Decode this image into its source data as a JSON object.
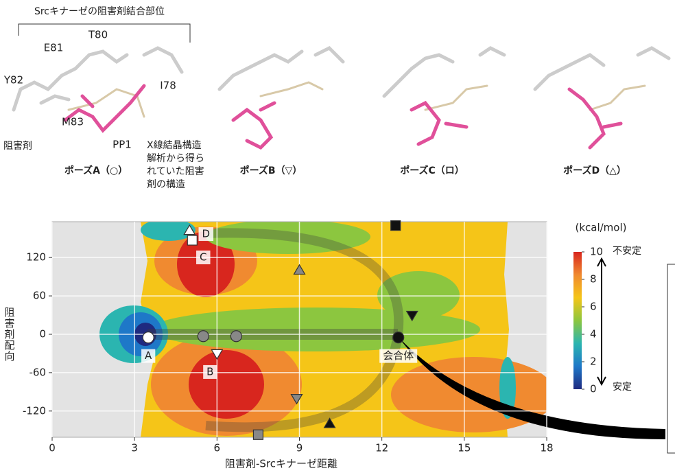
{
  "figure": {
    "site_title": "Srcキナーゼの阻害剤結合部位",
    "residues": [
      "T80",
      "E81",
      "Y82",
      "I78",
      "M83",
      "PP1",
      "阻害剤"
    ],
    "xray_note": [
      "X線結晶構造",
      "解析から得ら",
      "れていた阻害",
      "剤の構造"
    ],
    "poses": [
      "ポーズA（○）",
      "ポーズB（▽）",
      "ポーズC（ロ）",
      "ポーズD（△）"
    ]
  },
  "chart_data": {
    "type": "energy-map",
    "xlabel": "阻害剤-Srcキナーゼ距離",
    "ylabel": "阻害剤配向",
    "xlim": [
      0,
      18
    ],
    "xticks": [
      0,
      3,
      6,
      9,
      12,
      15,
      18
    ],
    "ylim": [
      -161,
      176
    ],
    "yticks": [
      120,
      60,
      0,
      -60,
      -120
    ],
    "grid": true,
    "colorbar": {
      "unit": "(kcal/mol)",
      "lim": [
        0,
        10
      ],
      "ticks": [
        0,
        2,
        4,
        6,
        8,
        10
      ],
      "high_label": "不安定",
      "low_label": "安定",
      "colors": [
        "#1f2a80",
        "#1e78c8",
        "#2bb5b0",
        "#8cc63f",
        "#f5c518",
        "#f08a30",
        "#d8261e"
      ]
    },
    "points": [
      {
        "x": 3.5,
        "y": -5,
        "marker": "circle",
        "color": "white",
        "label": "A"
      },
      {
        "x": 5.5,
        "y": -3,
        "marker": "circle",
        "color": "gray"
      },
      {
        "x": 6.7,
        "y": -3,
        "marker": "circle",
        "color": "gray"
      },
      {
        "x": 12.6,
        "y": -5,
        "marker": "circle",
        "color": "black",
        "label": "会合体"
      },
      {
        "x": 6.0,
        "y": -30,
        "marker": "triangle-down",
        "color": "white",
        "label": "B"
      },
      {
        "x": 5.1,
        "y": 147,
        "marker": "square",
        "color": "white",
        "label": "C"
      },
      {
        "x": 5.0,
        "y": 162,
        "marker": "triangle-up",
        "color": "white",
        "label": "D"
      },
      {
        "x": 9.0,
        "y": 100,
        "marker": "triangle-up",
        "color": "gray"
      },
      {
        "x": 13.1,
        "y": 30,
        "marker": "triangle-down",
        "color": "black"
      },
      {
        "x": 8.9,
        "y": -100,
        "marker": "triangle-down",
        "color": "gray"
      },
      {
        "x": 10.1,
        "y": -140,
        "marker": "triangle-up",
        "color": "black"
      },
      {
        "x": 7.5,
        "y": -157,
        "marker": "square",
        "color": "gray"
      },
      {
        "x": 12.5,
        "y": 170,
        "marker": "square",
        "color": "black"
      }
    ]
  }
}
